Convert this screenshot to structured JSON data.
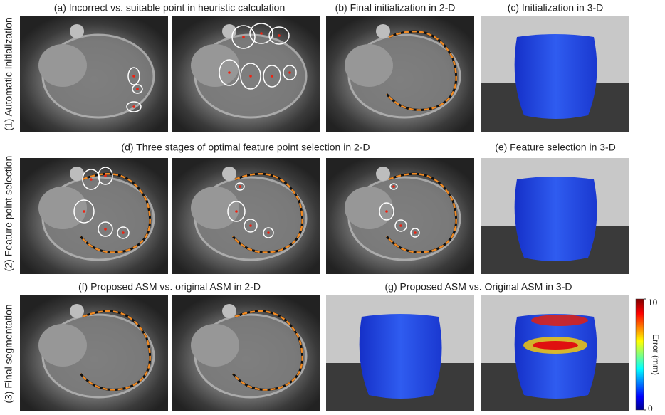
{
  "captions": {
    "a": "(a) Incorrect vs. suitable point in heuristic calculation",
    "b": "(b) Final initialization in 2-D",
    "c": "(c) Initialization in 3-D",
    "d": "(d) Three stages of optimal feature point selection in 2-D",
    "e": "(e) Feature selection in 3-D",
    "f": "(f) Proposed ASM vs. original ASM in 2-D",
    "g": "(g) Proposed ASM vs. Original ASM in 3-D"
  },
  "rows": [
    "(1) Automatic Initialization",
    "(2) Feature point selection",
    "(3) Final segmentation"
  ],
  "colorbar": {
    "title": "Error (mm)",
    "lim": [
      0,
      10
    ],
    "ticks": [
      0,
      10
    ]
  }
}
